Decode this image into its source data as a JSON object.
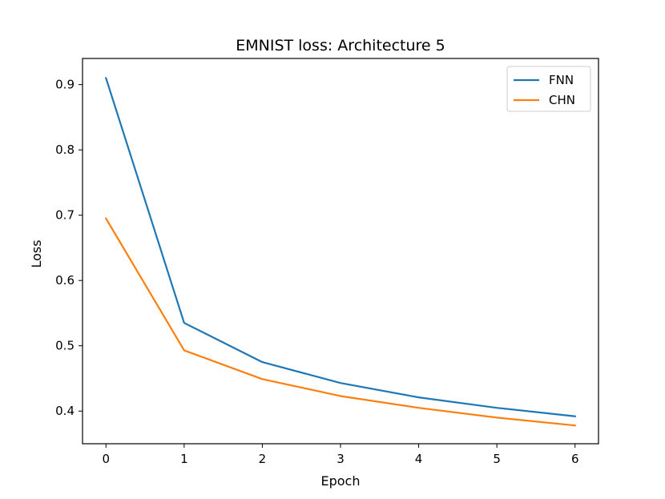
{
  "chart_data": {
    "type": "line",
    "title": "EMNIST loss: Architecture 5",
    "xlabel": "Epoch",
    "ylabel": "Loss",
    "x": [
      0,
      1,
      2,
      3,
      4,
      5,
      6
    ],
    "xlim": [
      -0.3,
      6.3
    ],
    "ylim": [
      0.35,
      0.94
    ],
    "xticks": [
      0,
      1,
      2,
      3,
      4,
      5,
      6
    ],
    "yticks": [
      0.4,
      0.5,
      0.6,
      0.7,
      0.8,
      0.9
    ],
    "grid": false,
    "legend_position": "top-right",
    "series": [
      {
        "name": "FNN",
        "color": "#1f77b4",
        "values": [
          0.91,
          0.535,
          0.475,
          0.443,
          0.421,
          0.405,
          0.392
        ]
      },
      {
        "name": "CHN",
        "color": "#ff7f0e",
        "values": [
          0.695,
          0.493,
          0.449,
          0.423,
          0.405,
          0.39,
          0.378
        ]
      }
    ]
  }
}
